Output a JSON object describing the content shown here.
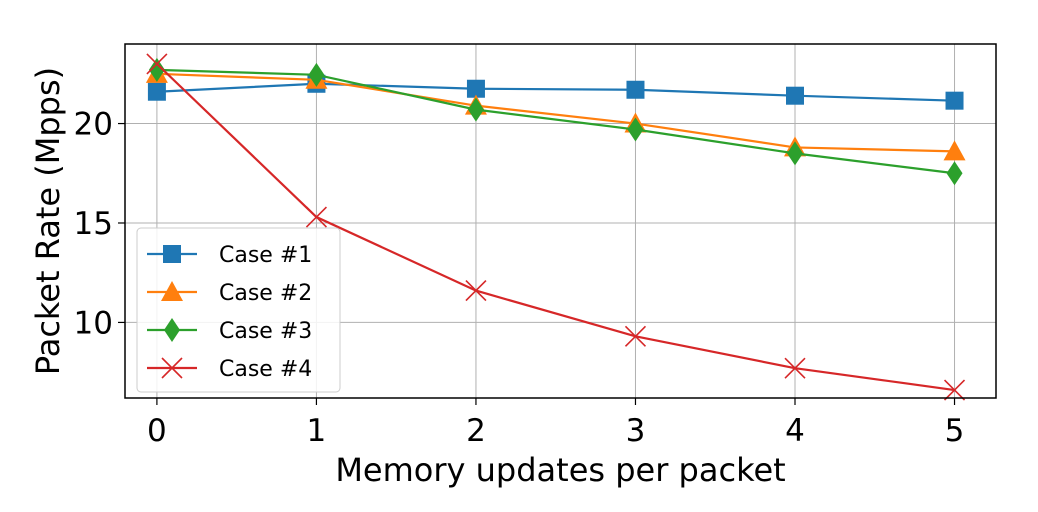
{
  "chart_data": {
    "type": "line",
    "xlabel": "Memory updates per packet",
    "ylabel": "Packet Rate (Mpps)",
    "x": [
      0,
      1,
      2,
      3,
      4,
      5
    ],
    "xticks": [
      "0",
      "1",
      "2",
      "3",
      "4",
      "5"
    ],
    "yticks": [
      "10",
      "15",
      "20"
    ],
    "xlim": [
      -0.2,
      5.26
    ],
    "ylim": [
      6.2,
      24.0
    ],
    "grid": true,
    "legend_position": "lower-left",
    "series": [
      {
        "name": "Case #1",
        "color": "#1f77b4",
        "marker": "square",
        "values": [
          21.6,
          22.0,
          21.75,
          21.7,
          21.4,
          21.15
        ]
      },
      {
        "name": "Case #2",
        "color": "#ff7f0e",
        "marker": "triangle",
        "values": [
          22.5,
          22.2,
          20.9,
          20.0,
          18.8,
          18.6
        ]
      },
      {
        "name": "Case #3",
        "color": "#2ca02c",
        "marker": "diamond",
        "values": [
          22.7,
          22.45,
          20.7,
          19.7,
          18.5,
          17.5
        ]
      },
      {
        "name": "Case #4",
        "color": "#d62728",
        "marker": "x",
        "values": [
          23.0,
          15.3,
          11.6,
          9.3,
          7.7,
          6.6
        ]
      }
    ]
  }
}
